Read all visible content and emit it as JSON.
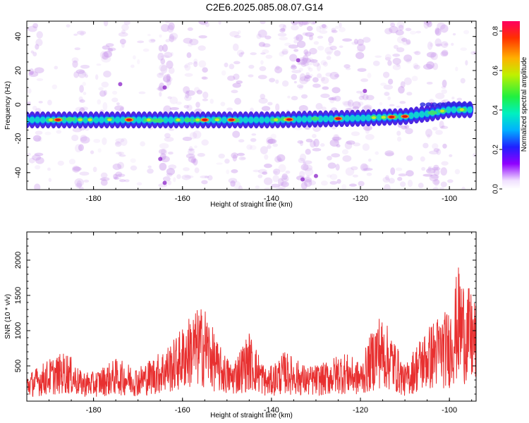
{
  "title": "C2E6.2025.085.08.07.G14",
  "chart_data": [
    {
      "type": "heatmap",
      "xlabel": "Height of straight line (km)",
      "ylabel": "Frequency (Hz)",
      "xlim": [
        -195,
        -94
      ],
      "ylim": [
        -50,
        49
      ],
      "xticks": [
        -180,
        -160,
        -140,
        -120,
        -100
      ],
      "yticks": [
        -40,
        -20,
        0,
        20,
        40
      ],
      "band": {
        "description_points": [
          {
            "x": -195,
            "freq": -9
          },
          {
            "x": -160,
            "freq": -9
          },
          {
            "x": -140,
            "freq": -9
          },
          {
            "x": -120,
            "freq": -8
          },
          {
            "x": -110,
            "freq": -7
          },
          {
            "x": -104,
            "freq": -5
          },
          {
            "x": -100,
            "freq": -3
          },
          {
            "x": -95,
            "freq": -3
          }
        ],
        "peak_amplitude_at": [
          -188,
          -172,
          -155,
          -149,
          -136,
          -125,
          -113,
          -110
        ],
        "colorbar": {
          "label": "Normalized spectral amplitude",
          "range": [
            0,
            0.85
          ],
          "ticks": [
            0,
            0.2,
            0.4,
            0.6,
            0.8
          ],
          "tick_labels": [
            "0.0",
            "0.2",
            "0.4",
            "0.6",
            "0.8"
          ]
        }
      }
    },
    {
      "type": "line",
      "xlabel": "Height of straight line (km)",
      "ylabel": "SNR (10 * v/v)",
      "xlim": [
        -195,
        -94
      ],
      "ylim": [
        0,
        2400
      ],
      "xticks": [
        -180,
        -160,
        -140,
        -120,
        -100
      ],
      "yticks": [
        500,
        1000,
        1500,
        2000
      ],
      "color": "#e83030",
      "series": [
        {
          "envelope": [
            {
              "x": -195,
              "y": 350
            },
            {
              "x": -190,
              "y": 550
            },
            {
              "x": -186,
              "y": 650
            },
            {
              "x": -183,
              "y": 400
            },
            {
              "x": -180,
              "y": 380
            },
            {
              "x": -175,
              "y": 550
            },
            {
              "x": -170,
              "y": 450
            },
            {
              "x": -166,
              "y": 600
            },
            {
              "x": -162,
              "y": 800
            },
            {
              "x": -158,
              "y": 1150
            },
            {
              "x": -155,
              "y": 1250
            },
            {
              "x": -152,
              "y": 750
            },
            {
              "x": -149,
              "y": 500
            },
            {
              "x": -145,
              "y": 900
            },
            {
              "x": -141,
              "y": 400
            },
            {
              "x": -137,
              "y": 650
            },
            {
              "x": -132,
              "y": 450
            },
            {
              "x": -128,
              "y": 500
            },
            {
              "x": -124,
              "y": 650
            },
            {
              "x": -120,
              "y": 500
            },
            {
              "x": -116,
              "y": 1150
            },
            {
              "x": -113,
              "y": 900
            },
            {
              "x": -110,
              "y": 450
            },
            {
              "x": -107,
              "y": 800
            },
            {
              "x": -103,
              "y": 1100
            },
            {
              "x": -100,
              "y": 1200
            },
            {
              "x": -98,
              "y": 1750
            },
            {
              "x": -96,
              "y": 1500
            },
            {
              "x": -94,
              "y": 1300
            }
          ]
        }
      ]
    }
  ]
}
